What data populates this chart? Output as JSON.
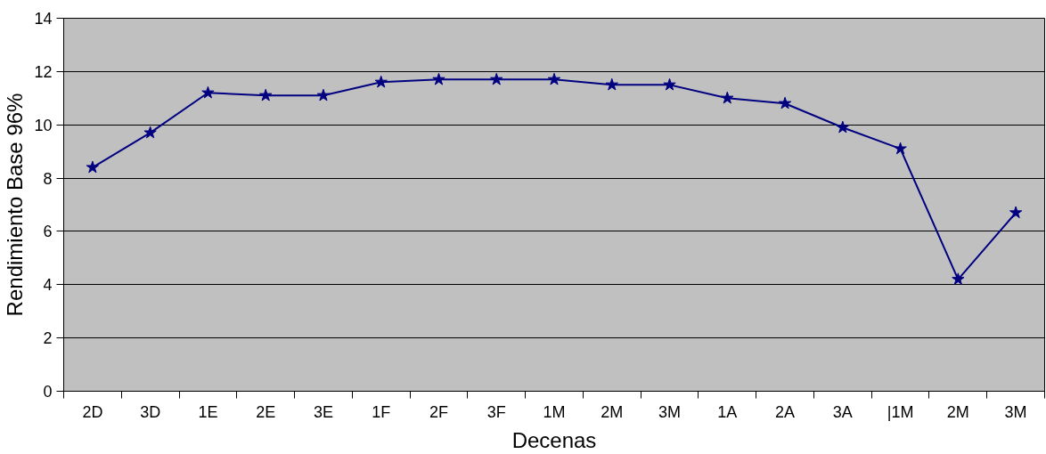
{
  "chart_data": {
    "type": "line",
    "xlabel": "Decenas",
    "ylabel": "Rendimiento Base 96%",
    "categories": [
      "2D",
      "3D",
      "1E",
      "2E",
      "3E",
      "1F",
      "2F",
      "3F",
      "1M",
      "2M",
      "3M",
      "1A",
      "2A",
      "3A",
      "|1M",
      "2M",
      "3M"
    ],
    "series": [
      {
        "color": "#000080",
        "values": [
          8.4,
          9.7,
          11.2,
          11.1,
          11.1,
          11.6,
          11.7,
          11.7,
          11.7,
          11.5,
          11.5,
          11.0,
          10.8,
          9.9,
          9.1,
          4.2,
          6.7
        ]
      }
    ],
    "ylim": [
      0,
      14
    ],
    "yticks": [
      0,
      2,
      4,
      6,
      8,
      10,
      12,
      14
    ],
    "grid": "y",
    "marker": "star",
    "line_style": "solid"
  }
}
